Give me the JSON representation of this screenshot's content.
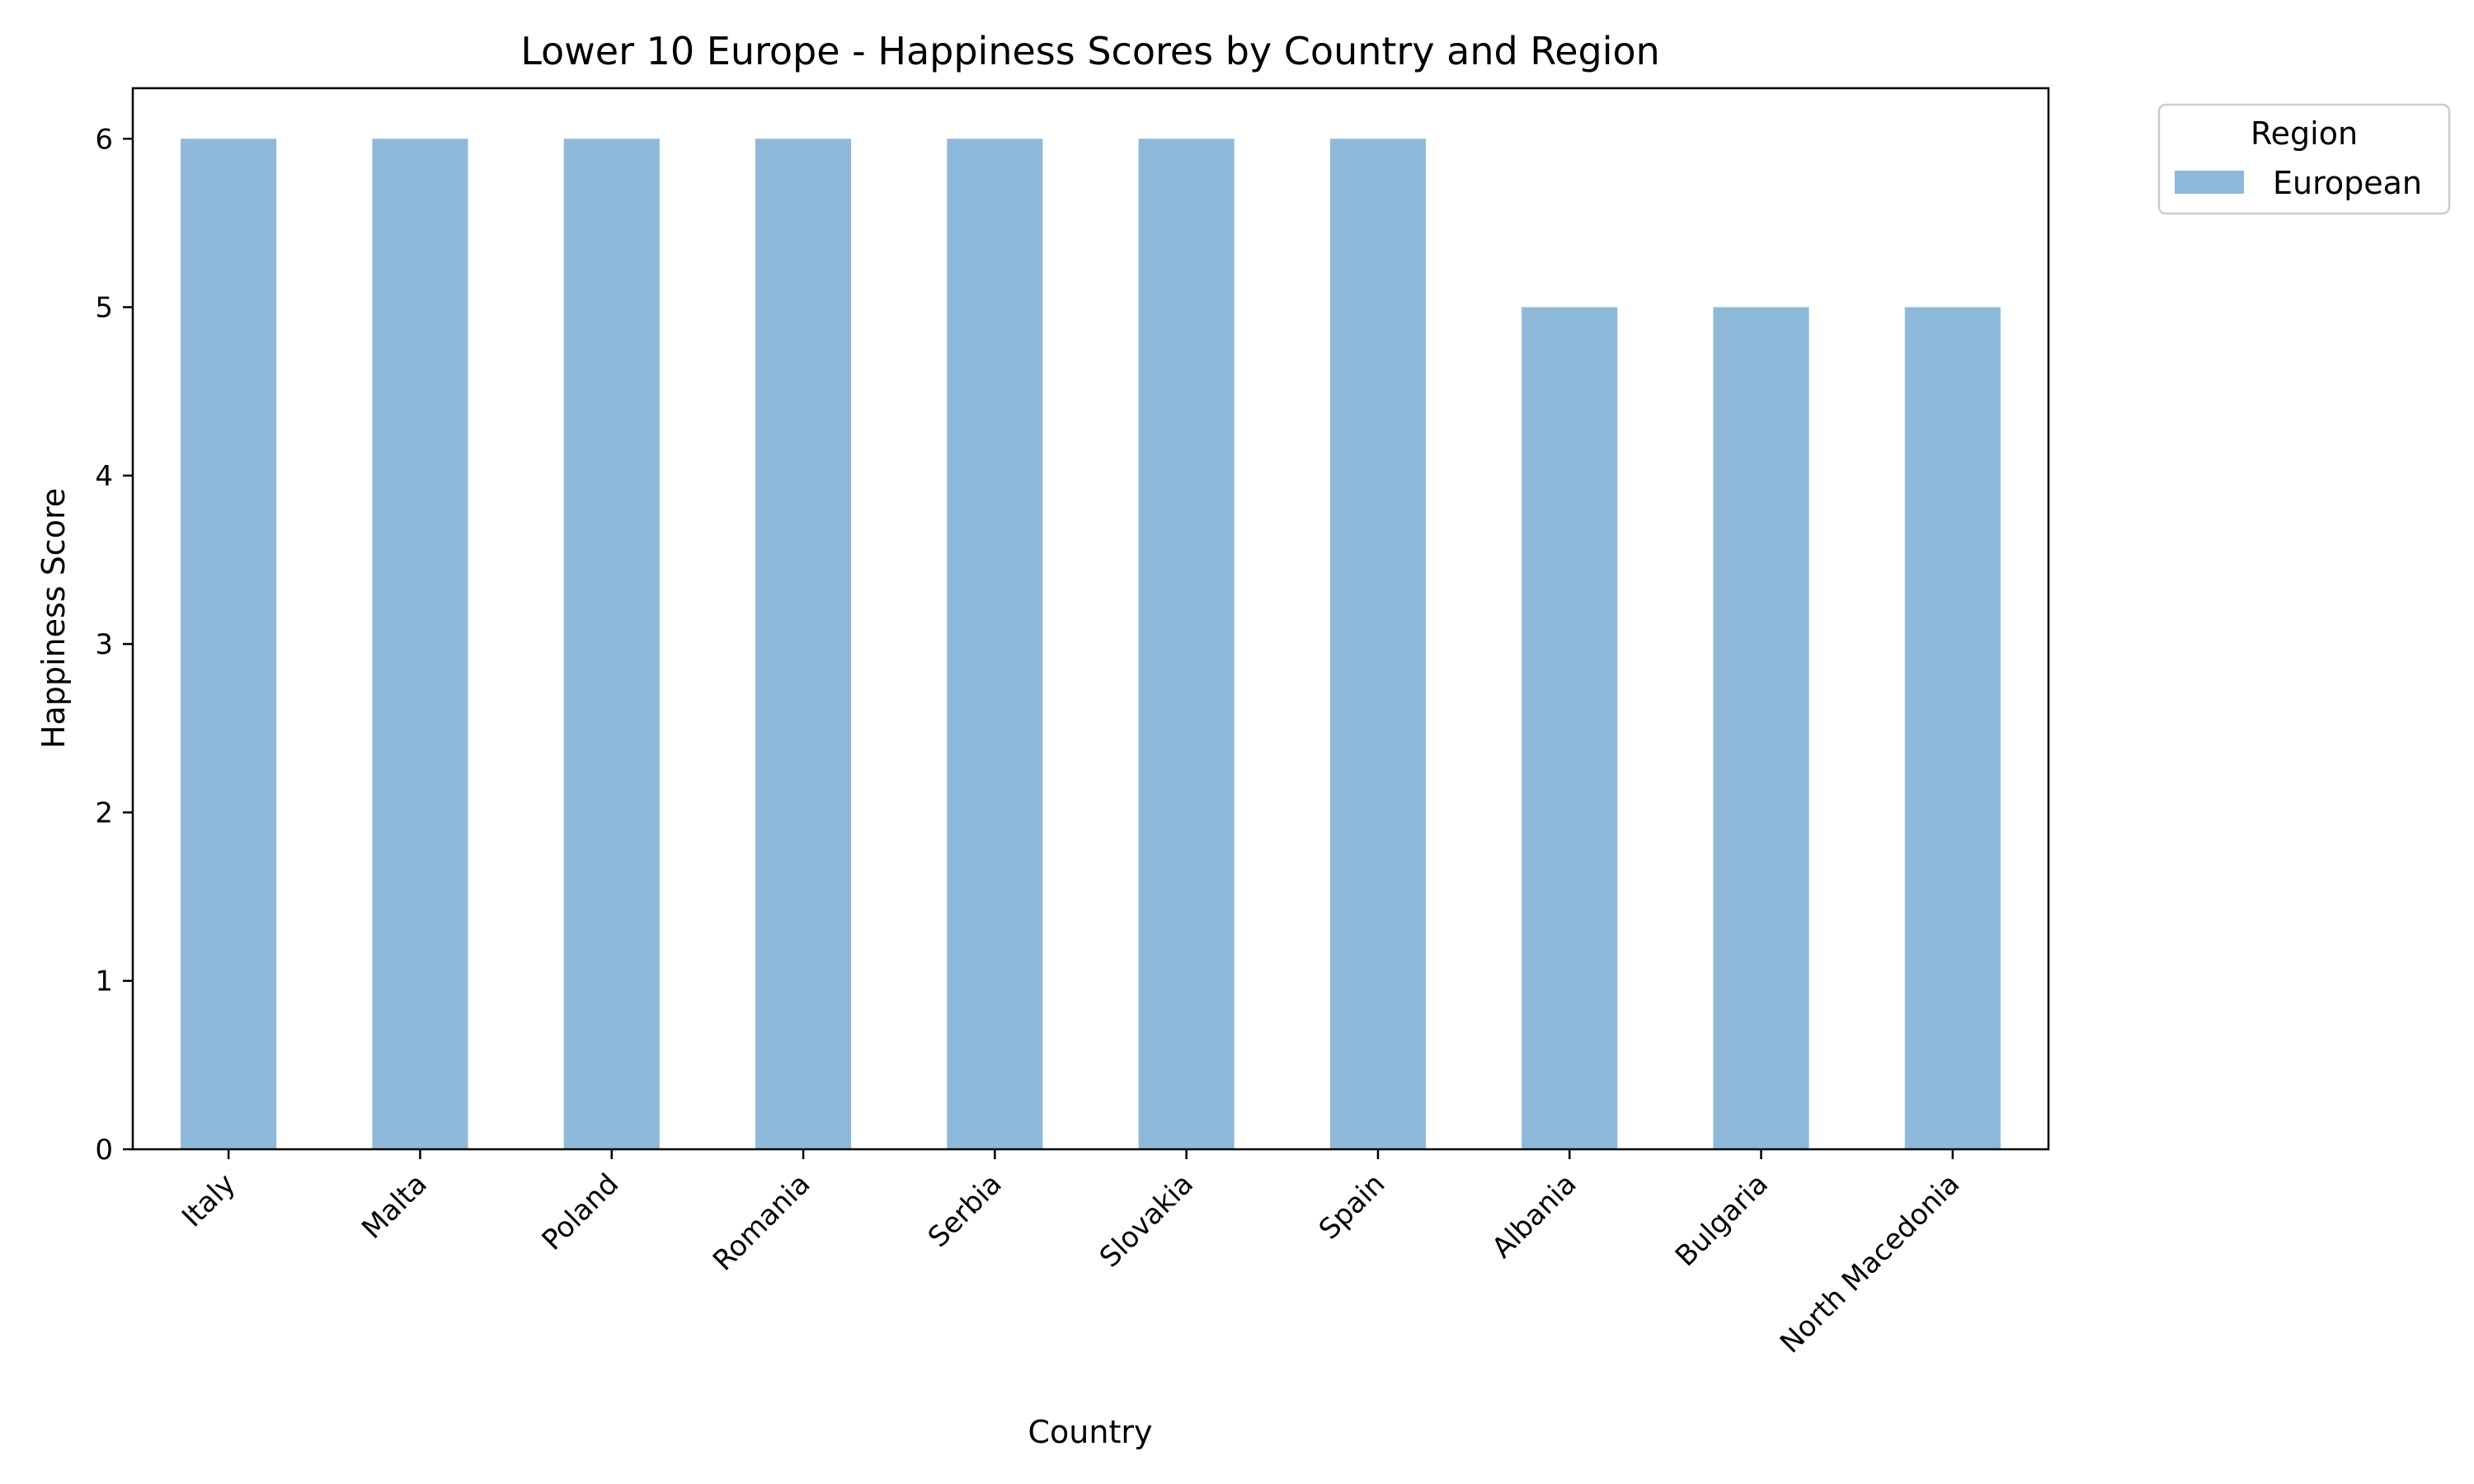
{
  "chart_data": {
    "type": "bar",
    "title": "Lower 10 Europe - Happiness Scores by Country and Region",
    "xlabel": "Country",
    "ylabel": "Happiness Score",
    "categories": [
      "Italy",
      "Malta",
      "Poland",
      "Romania",
      "Serbia",
      "Slovakia",
      "Spain",
      "Albania",
      "Bulgaria",
      "North Macedonia"
    ],
    "series": [
      {
        "name": "European",
        "values": [
          6,
          6,
          6,
          6,
          6,
          6,
          6,
          5,
          5,
          5
        ],
        "color": "#8fb9da"
      }
    ],
    "ylim": [
      0,
      6.3
    ],
    "yticks": [
      0,
      1,
      2,
      3,
      4,
      5,
      6
    ],
    "grid": false,
    "legend": {
      "title": "Region",
      "placement": "outside-top-right"
    }
  }
}
